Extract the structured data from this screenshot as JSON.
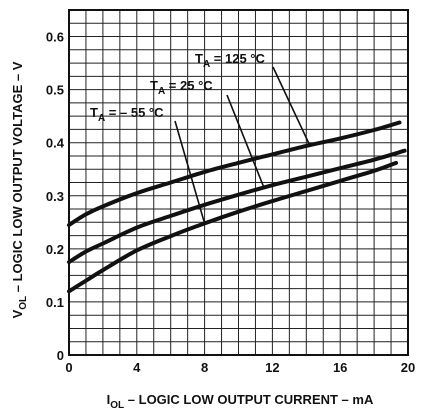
{
  "chart_data": {
    "type": "line",
    "title": "",
    "xlabel": {
      "main": "I",
      "sub": "OL",
      "rest": " – LOGIC LOW OUTPUT CURRENT – mA"
    },
    "ylabel": {
      "main": "V",
      "sub": "OL",
      "rest": " – LOGIC LOW OUTPUT VOLTAGE – V"
    },
    "xlim": [
      0,
      20
    ],
    "ylim": [
      0,
      0.65
    ],
    "xticks": [
      0,
      4,
      8,
      12,
      16,
      20
    ],
    "xtick_labels": [
      "0",
      "4",
      "8",
      "12",
      "16",
      "20"
    ],
    "yticks": [
      0,
      0.1,
      0.2,
      0.3,
      0.4,
      0.5,
      0.6
    ],
    "ytick_labels": [
      "0",
      "0.1",
      "0.2",
      "0.3",
      "0.4",
      "0.5",
      "0.6"
    ],
    "grid": true,
    "legend": "none",
    "series": [
      {
        "name": "T_A = 125 °C",
        "label": {
          "main": "T",
          "sub": "A",
          "rest": " = 125 °C"
        },
        "x": [
          0,
          1,
          2,
          4,
          6,
          8,
          10,
          12,
          14,
          16,
          18,
          19.5
        ],
        "y": [
          0.245,
          0.265,
          0.28,
          0.305,
          0.325,
          0.345,
          0.362,
          0.378,
          0.394,
          0.408,
          0.424,
          0.438
        ]
      },
      {
        "name": "T_A = 25 °C",
        "label": {
          "main": "T",
          "sub": "A",
          "rest": " = 25 °C"
        },
        "x": [
          0,
          1,
          2,
          4,
          6,
          8,
          10,
          12,
          14,
          16,
          18,
          19.8
        ],
        "y": [
          0.175,
          0.195,
          0.21,
          0.24,
          0.262,
          0.283,
          0.302,
          0.32,
          0.336,
          0.352,
          0.368,
          0.385
        ]
      },
      {
        "name": "T_A = -55 °C",
        "label": {
          "main": "T",
          "sub": "A",
          "rest": " = – 55 °C"
        },
        "x": [
          0,
          1,
          2,
          4,
          6,
          8,
          10,
          12,
          14,
          16,
          18,
          19.3
        ],
        "y": [
          0.12,
          0.14,
          0.16,
          0.197,
          0.224,
          0.248,
          0.27,
          0.29,
          0.309,
          0.328,
          0.347,
          0.362
        ]
      }
    ],
    "annotations": [
      {
        "series": 0,
        "text": {
          "main": "T",
          "sub": "A",
          "rest": " = 125 °C"
        },
        "anchor_x": 14.2
      },
      {
        "series": 1,
        "text": {
          "main": "T",
          "sub": "A",
          "rest": " = 25 °C"
        },
        "anchor_x": 11.5
      },
      {
        "series": 2,
        "text": {
          "main": "T",
          "sub": "A",
          "rest": " = – 55 °C"
        },
        "anchor_x": 8
      }
    ]
  }
}
